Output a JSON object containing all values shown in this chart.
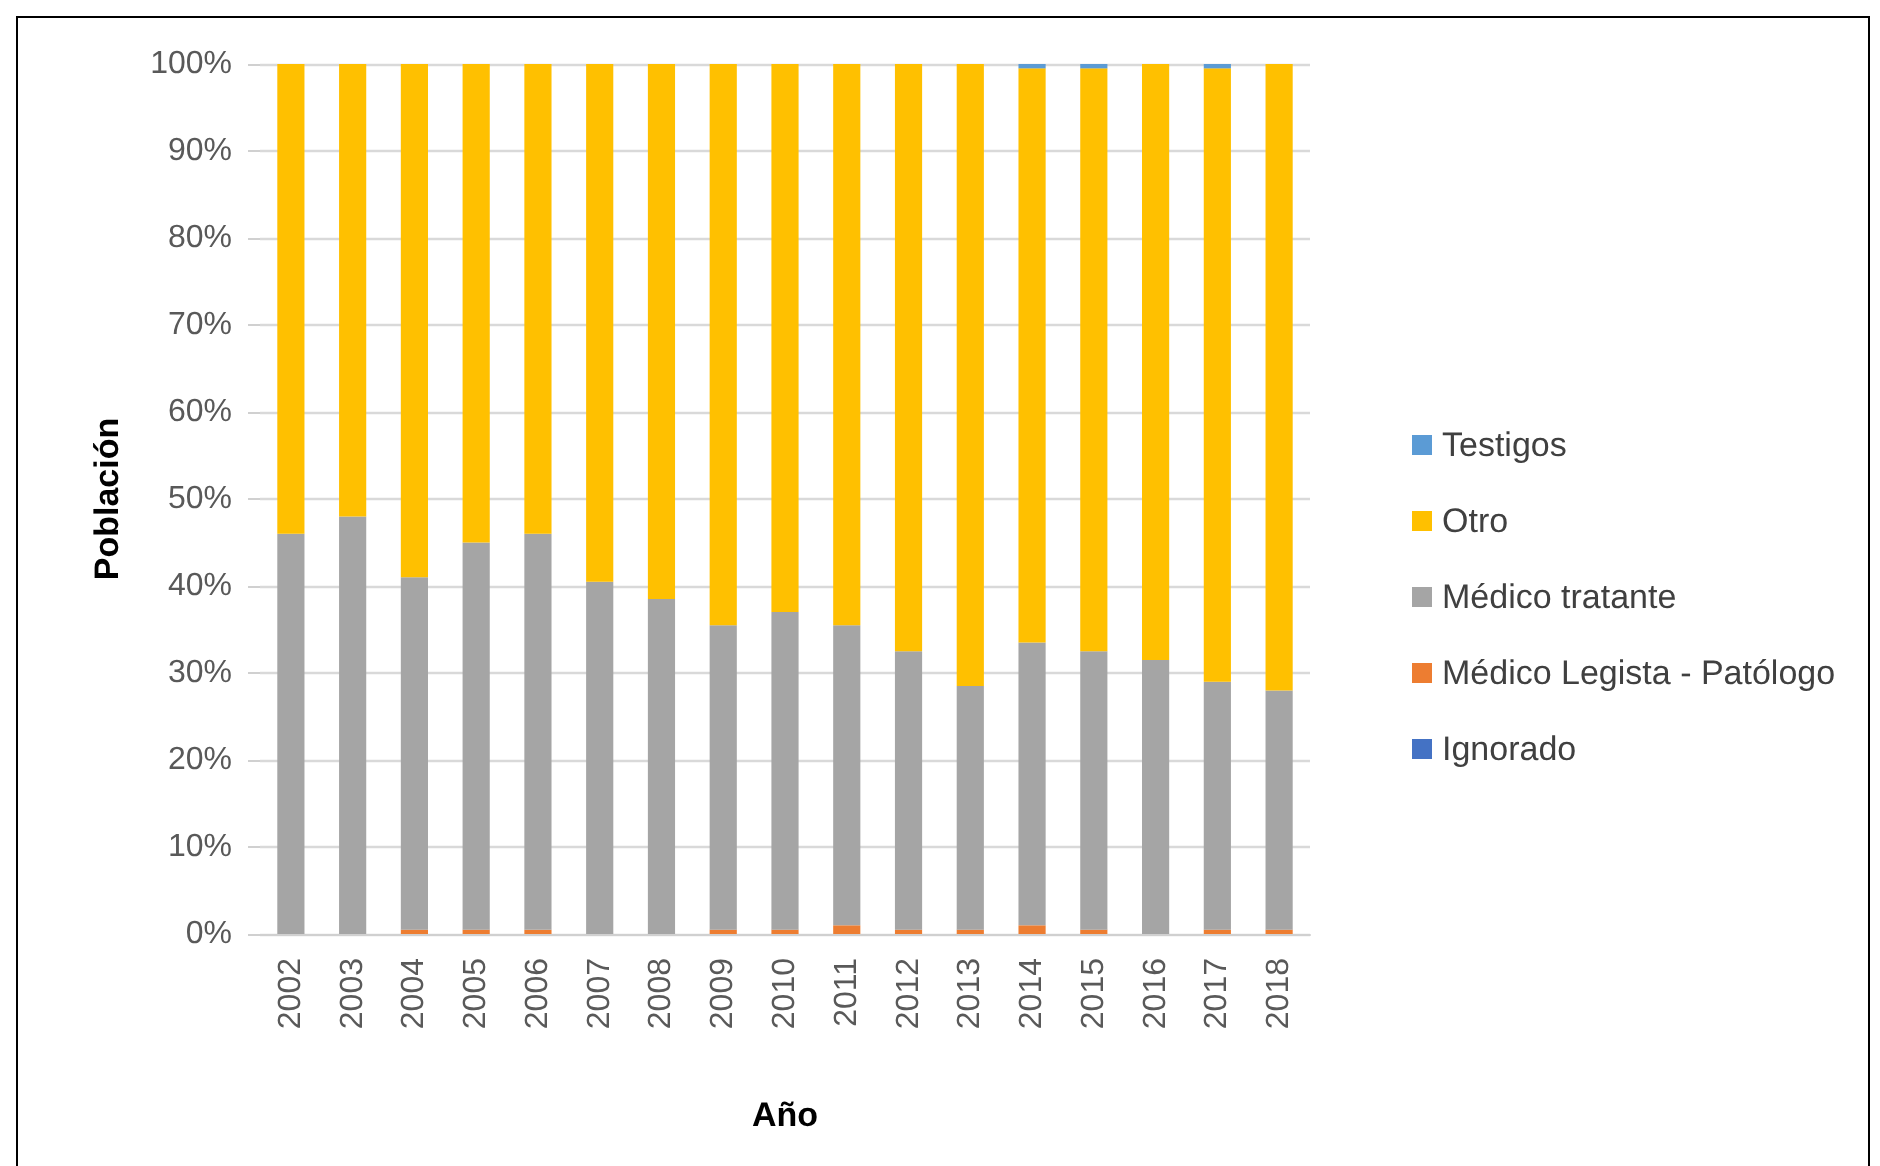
{
  "chart_data": {
    "type": "bar",
    "stacked": true,
    "xlabel": "Año",
    "ylabel": "Población",
    "categories": [
      "2002",
      "2003",
      "2004",
      "2005",
      "2006",
      "2007",
      "2008",
      "2009",
      "2010",
      "2011",
      "2012",
      "2013",
      "2014",
      "2015",
      "2016",
      "2017",
      "2018"
    ],
    "ylim": [
      0,
      100
    ],
    "yticks": [
      {
        "value": 0,
        "label": "0%"
      },
      {
        "value": 10,
        "label": "10%"
      },
      {
        "value": 20,
        "label": "20%"
      },
      {
        "value": 30,
        "label": "30%"
      },
      {
        "value": 40,
        "label": "40%"
      },
      {
        "value": 50,
        "label": "50%"
      },
      {
        "value": 60,
        "label": "60%"
      },
      {
        "value": 70,
        "label": "70%"
      },
      {
        "value": 80,
        "label": "80%"
      },
      {
        "value": 90,
        "label": "90%"
      },
      {
        "value": 100,
        "label": "100%"
      }
    ],
    "grid": "y",
    "legend": "right",
    "series": [
      {
        "name": "Ignorado",
        "color": "#4472c4",
        "values": [
          null,
          null,
          null,
          null,
          null,
          null,
          null,
          null,
          null,
          null,
          null,
          null,
          null,
          null,
          null,
          null,
          null
        ]
      },
      {
        "name": "Médico Legista - Patólogo",
        "color": "#ed7d31",
        "values": [
          null,
          null,
          0.5,
          0.5,
          0.5,
          null,
          null,
          0.5,
          0.5,
          1,
          0.5,
          0.5,
          1,
          0.5,
          null,
          0.5,
          0.5
        ]
      },
      {
        "name": "Médico tratante",
        "color": "#a5a5a5",
        "values": [
          46,
          48,
          40.5,
          44.5,
          45.5,
          40.5,
          38.5,
          35,
          36.5,
          34.5,
          32,
          28,
          32.5,
          32,
          31.5,
          28.5,
          27.5
        ]
      },
      {
        "name": "Otro",
        "color": "#ffc000",
        "values": [
          54,
          52,
          59,
          55,
          54,
          59.5,
          61.5,
          64.5,
          63,
          64.5,
          67.5,
          71.5,
          66,
          67,
          68.5,
          70.5,
          72
        ]
      },
      {
        "name": "Testigos",
        "color": "#5b9bd5",
        "values": [
          null,
          null,
          null,
          null,
          null,
          null,
          null,
          null,
          null,
          null,
          null,
          null,
          0.5,
          0.5,
          null,
          0.5,
          null
        ]
      }
    ]
  }
}
